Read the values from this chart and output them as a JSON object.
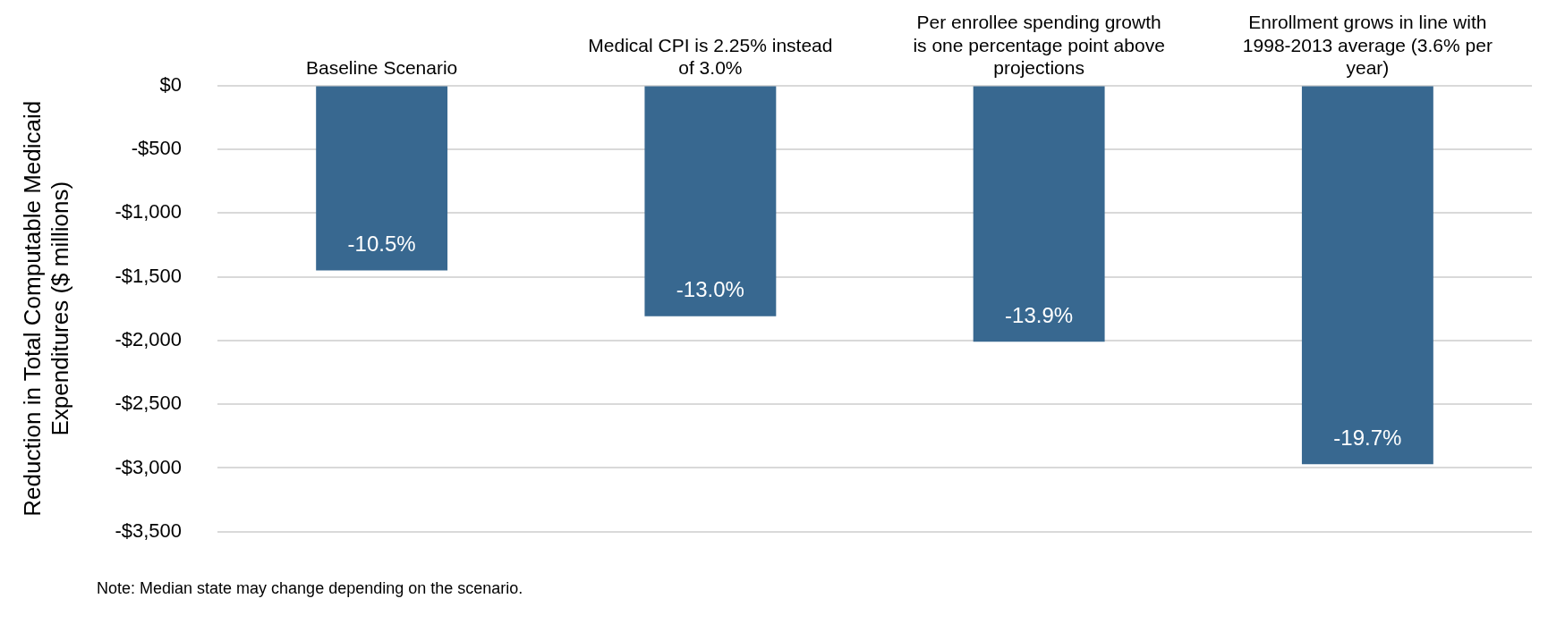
{
  "chart_data": {
    "type": "bar",
    "categories": [
      "Baseline Scenario",
      "Medical CPI is 2.25% instead of 3.0%",
      "Per enrollee spending growth is one percentage point above projections",
      "Enrollment grows in line with 1998-2013 average (3.6% per year)"
    ],
    "values": [
      -1450,
      -1810,
      -2010,
      -2970
    ],
    "color": "#386890",
    "ylabel": "Reduction in Total Computable Medicaid Expenditures ($ millions)",
    "ylim": [
      -3500,
      0
    ],
    "yticks": [
      {
        "value": 0,
        "label": "$0"
      },
      {
        "value": -500,
        "label": "-$500"
      },
      {
        "value": -1000,
        "label": "-$1,000"
      },
      {
        "value": -1500,
        "label": "-$1,500"
      },
      {
        "value": -2000,
        "label": "-$2,000"
      },
      {
        "value": -2500,
        "label": "-$2,500"
      },
      {
        "value": -3000,
        "label": "-$3,000"
      },
      {
        "value": -3500,
        "label": "-$3,500"
      }
    ],
    "grid": "y",
    "legend": false,
    "annotations": [
      {
        "text": "-10.5%",
        "x": "Baseline Scenario",
        "y": -1450
      },
      {
        "text": "-13.0%",
        "x": "Medical CPI is 2.25% instead of 3.0%",
        "y": -1810
      },
      {
        "text": "-13.9%",
        "x": "Per enrollee spending growth is one percentage point above projections",
        "y": -2010
      },
      {
        "text": "-19.7%",
        "x": "Enrollment grows in line with 1998-2013 average (3.6% per year)",
        "y": -2970
      },
      "Note: Median state may change depending on the scenario."
    ]
  }
}
